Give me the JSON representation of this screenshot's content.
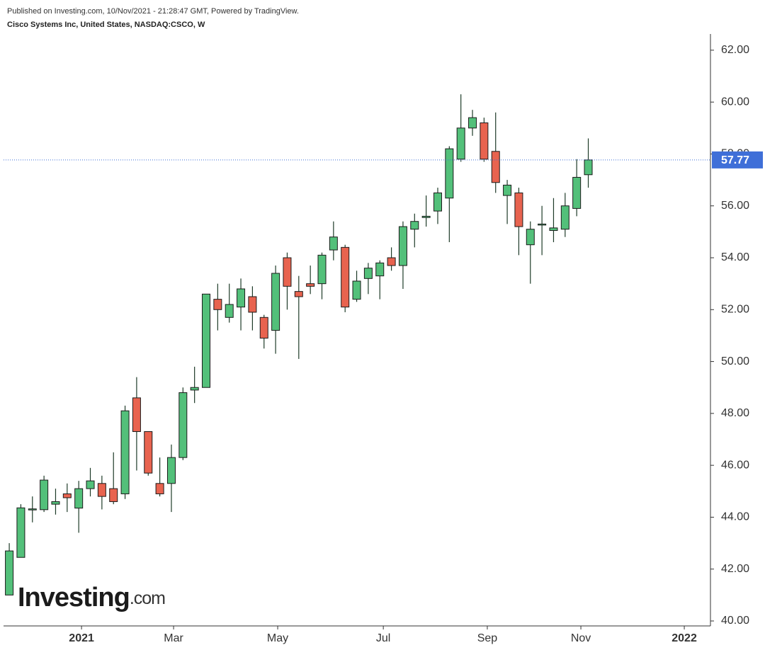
{
  "header": {
    "published": "Published on Investing.com, 10/Nov/2021 - 21:28:47 GMT, Powered by TradingView.",
    "symbol": "Cisco Systems Inc, United States, NASDAQ:CSCO, W"
  },
  "logo": {
    "brand": "Investing",
    "suffix": ".com"
  },
  "chart_data": {
    "type": "candlestick",
    "categories": [
      null,
      null,
      null,
      null,
      null,
      null,
      null,
      null,
      null,
      null,
      null,
      null,
      null,
      null,
      null,
      null,
      null,
      null,
      null,
      null,
      null,
      null,
      null,
      null,
      null,
      null,
      null,
      null,
      null,
      null,
      null,
      null,
      null,
      null,
      null,
      null,
      null,
      null,
      null,
      null,
      null,
      null,
      null,
      null,
      null,
      null,
      null,
      null,
      null,
      null,
      null
    ],
    "open": [
      41.0,
      42.45,
      44.28,
      44.29,
      44.5,
      44.9,
      44.35,
      45.1,
      45.3,
      45.1,
      44.9,
      48.6,
      47.3,
      45.3,
      45.3,
      46.3,
      48.9,
      49.0,
      52.4,
      51.7,
      52.1,
      52.5,
      51.7,
      51.2,
      54.0,
      52.7,
      53.0,
      53.0,
      54.3,
      54.4,
      52.4,
      53.2,
      53.3,
      54.0,
      53.7,
      55.1,
      55.55,
      55.8,
      56.3,
      57.8,
      59.0,
      59.2,
      58.1,
      56.4,
      56.5,
      54.5,
      55.28,
      55.05,
      55.1,
      55.9,
      57.2
    ],
    "high": [
      43.0,
      44.5,
      44.8,
      45.6,
      45.1,
      45.3,
      45.4,
      45.9,
      45.6,
      46.5,
      48.3,
      49.4,
      47.3,
      46.3,
      46.8,
      49.0,
      49.8,
      52.6,
      53.0,
      53.0,
      53.2,
      52.9,
      51.8,
      53.7,
      54.2,
      53.3,
      53.7,
      54.2,
      55.4,
      54.5,
      53.5,
      53.8,
      53.9,
      54.4,
      55.4,
      55.7,
      56.4,
      56.7,
      58.3,
      60.3,
      59.7,
      59.4,
      59.6,
      57.0,
      56.7,
      55.4,
      56.0,
      56.3,
      56.5,
      57.8,
      58.6
    ],
    "low": [
      41.0,
      42.45,
      43.8,
      44.2,
      44.1,
      44.2,
      43.4,
      44.8,
      44.3,
      44.5,
      44.7,
      45.8,
      45.6,
      44.8,
      44.2,
      46.2,
      48.4,
      49.0,
      51.2,
      51.5,
      51.2,
      51.2,
      50.5,
      50.3,
      52.0,
      50.1,
      52.6,
      52.4,
      53.9,
      51.9,
      52.3,
      52.6,
      52.4,
      53.5,
      52.8,
      54.4,
      55.2,
      55.3,
      54.6,
      57.7,
      58.7,
      57.7,
      56.5,
      55.3,
      54.1,
      53.0,
      54.1,
      54.6,
      54.8,
      55.6,
      56.7
    ],
    "close": [
      42.7,
      44.36,
      44.32,
      45.43,
      44.6,
      44.75,
      45.1,
      45.4,
      44.8,
      44.6,
      48.1,
      47.3,
      45.7,
      44.9,
      46.3,
      48.8,
      49.0,
      52.6,
      52.0,
      52.2,
      52.8,
      51.9,
      50.9,
      53.4,
      52.9,
      52.5,
      52.9,
      54.1,
      54.8,
      52.1,
      53.1,
      53.6,
      53.8,
      53.7,
      55.2,
      55.4,
      55.6,
      56.5,
      58.2,
      59.0,
      59.4,
      57.8,
      56.9,
      56.8,
      55.2,
      55.1,
      55.3,
      55.15,
      56.0,
      57.1,
      57.77
    ],
    "up_color": "#53c07a",
    "down_color": "#e8634f",
    "last_price": 57.77,
    "last_price_color": "#3f6fd8",
    "xlim": [
      -0.8,
      60.55
    ],
    "xticks": [
      {
        "value": 6.24,
        "label": "2021"
      },
      {
        "value": 14.19,
        "label": "Mar"
      },
      {
        "value": 23.18,
        "label": "May"
      },
      {
        "value": 32.3,
        "label": "Jul"
      },
      {
        "value": 41.28,
        "label": "Sep"
      },
      {
        "value": 49.36,
        "label": "Nov"
      },
      {
        "value": 58.29,
        "label": "2022"
      }
    ],
    "ylim": [
      40,
      62.57
    ],
    "yticks": [
      {
        "value": 40,
        "label": "40.00"
      },
      {
        "value": 42,
        "label": "42.00"
      },
      {
        "value": 44,
        "label": "44.00"
      },
      {
        "value": 46,
        "label": "46.00"
      },
      {
        "value": 48,
        "label": "48.00"
      },
      {
        "value": 50,
        "label": "50.00"
      },
      {
        "value": 52,
        "label": "52.00"
      },
      {
        "value": 54,
        "label": "54.00"
      },
      {
        "value": 56,
        "label": "56.00"
      },
      {
        "value": 58,
        "label": "58.00"
      },
      {
        "value": 60,
        "label": "60.00"
      },
      {
        "value": 62,
        "label": "62.00"
      }
    ]
  }
}
